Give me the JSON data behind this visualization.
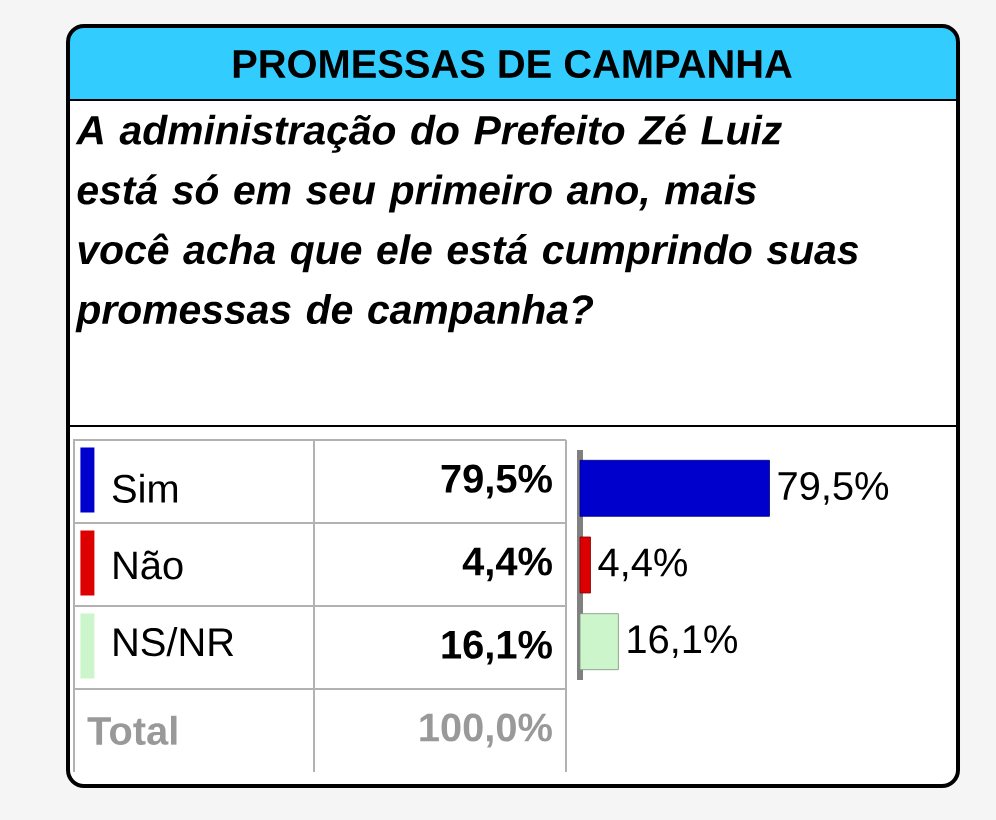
{
  "chart_data": {
    "type": "bar",
    "orientation": "horizontal",
    "title": "PROMESSAS DE CAMPANHA",
    "subtitle": "A administração do Prefeito Zé Luiz está só em seu primeiro ano, mais você acha que ele está cumprindo suas promessas de campanha?",
    "categories": [
      "Sim",
      "Não",
      "NS/NR"
    ],
    "values": [
      79.5,
      4.4,
      16.1
    ],
    "value_labels": [
      "79,5%",
      "4,4%",
      "16,1%"
    ],
    "colors": [
      "#0000cc",
      "#dd0000",
      "#ccf5cc"
    ],
    "annotations": [
      "Total",
      "100,0%"
    ]
  }
}
